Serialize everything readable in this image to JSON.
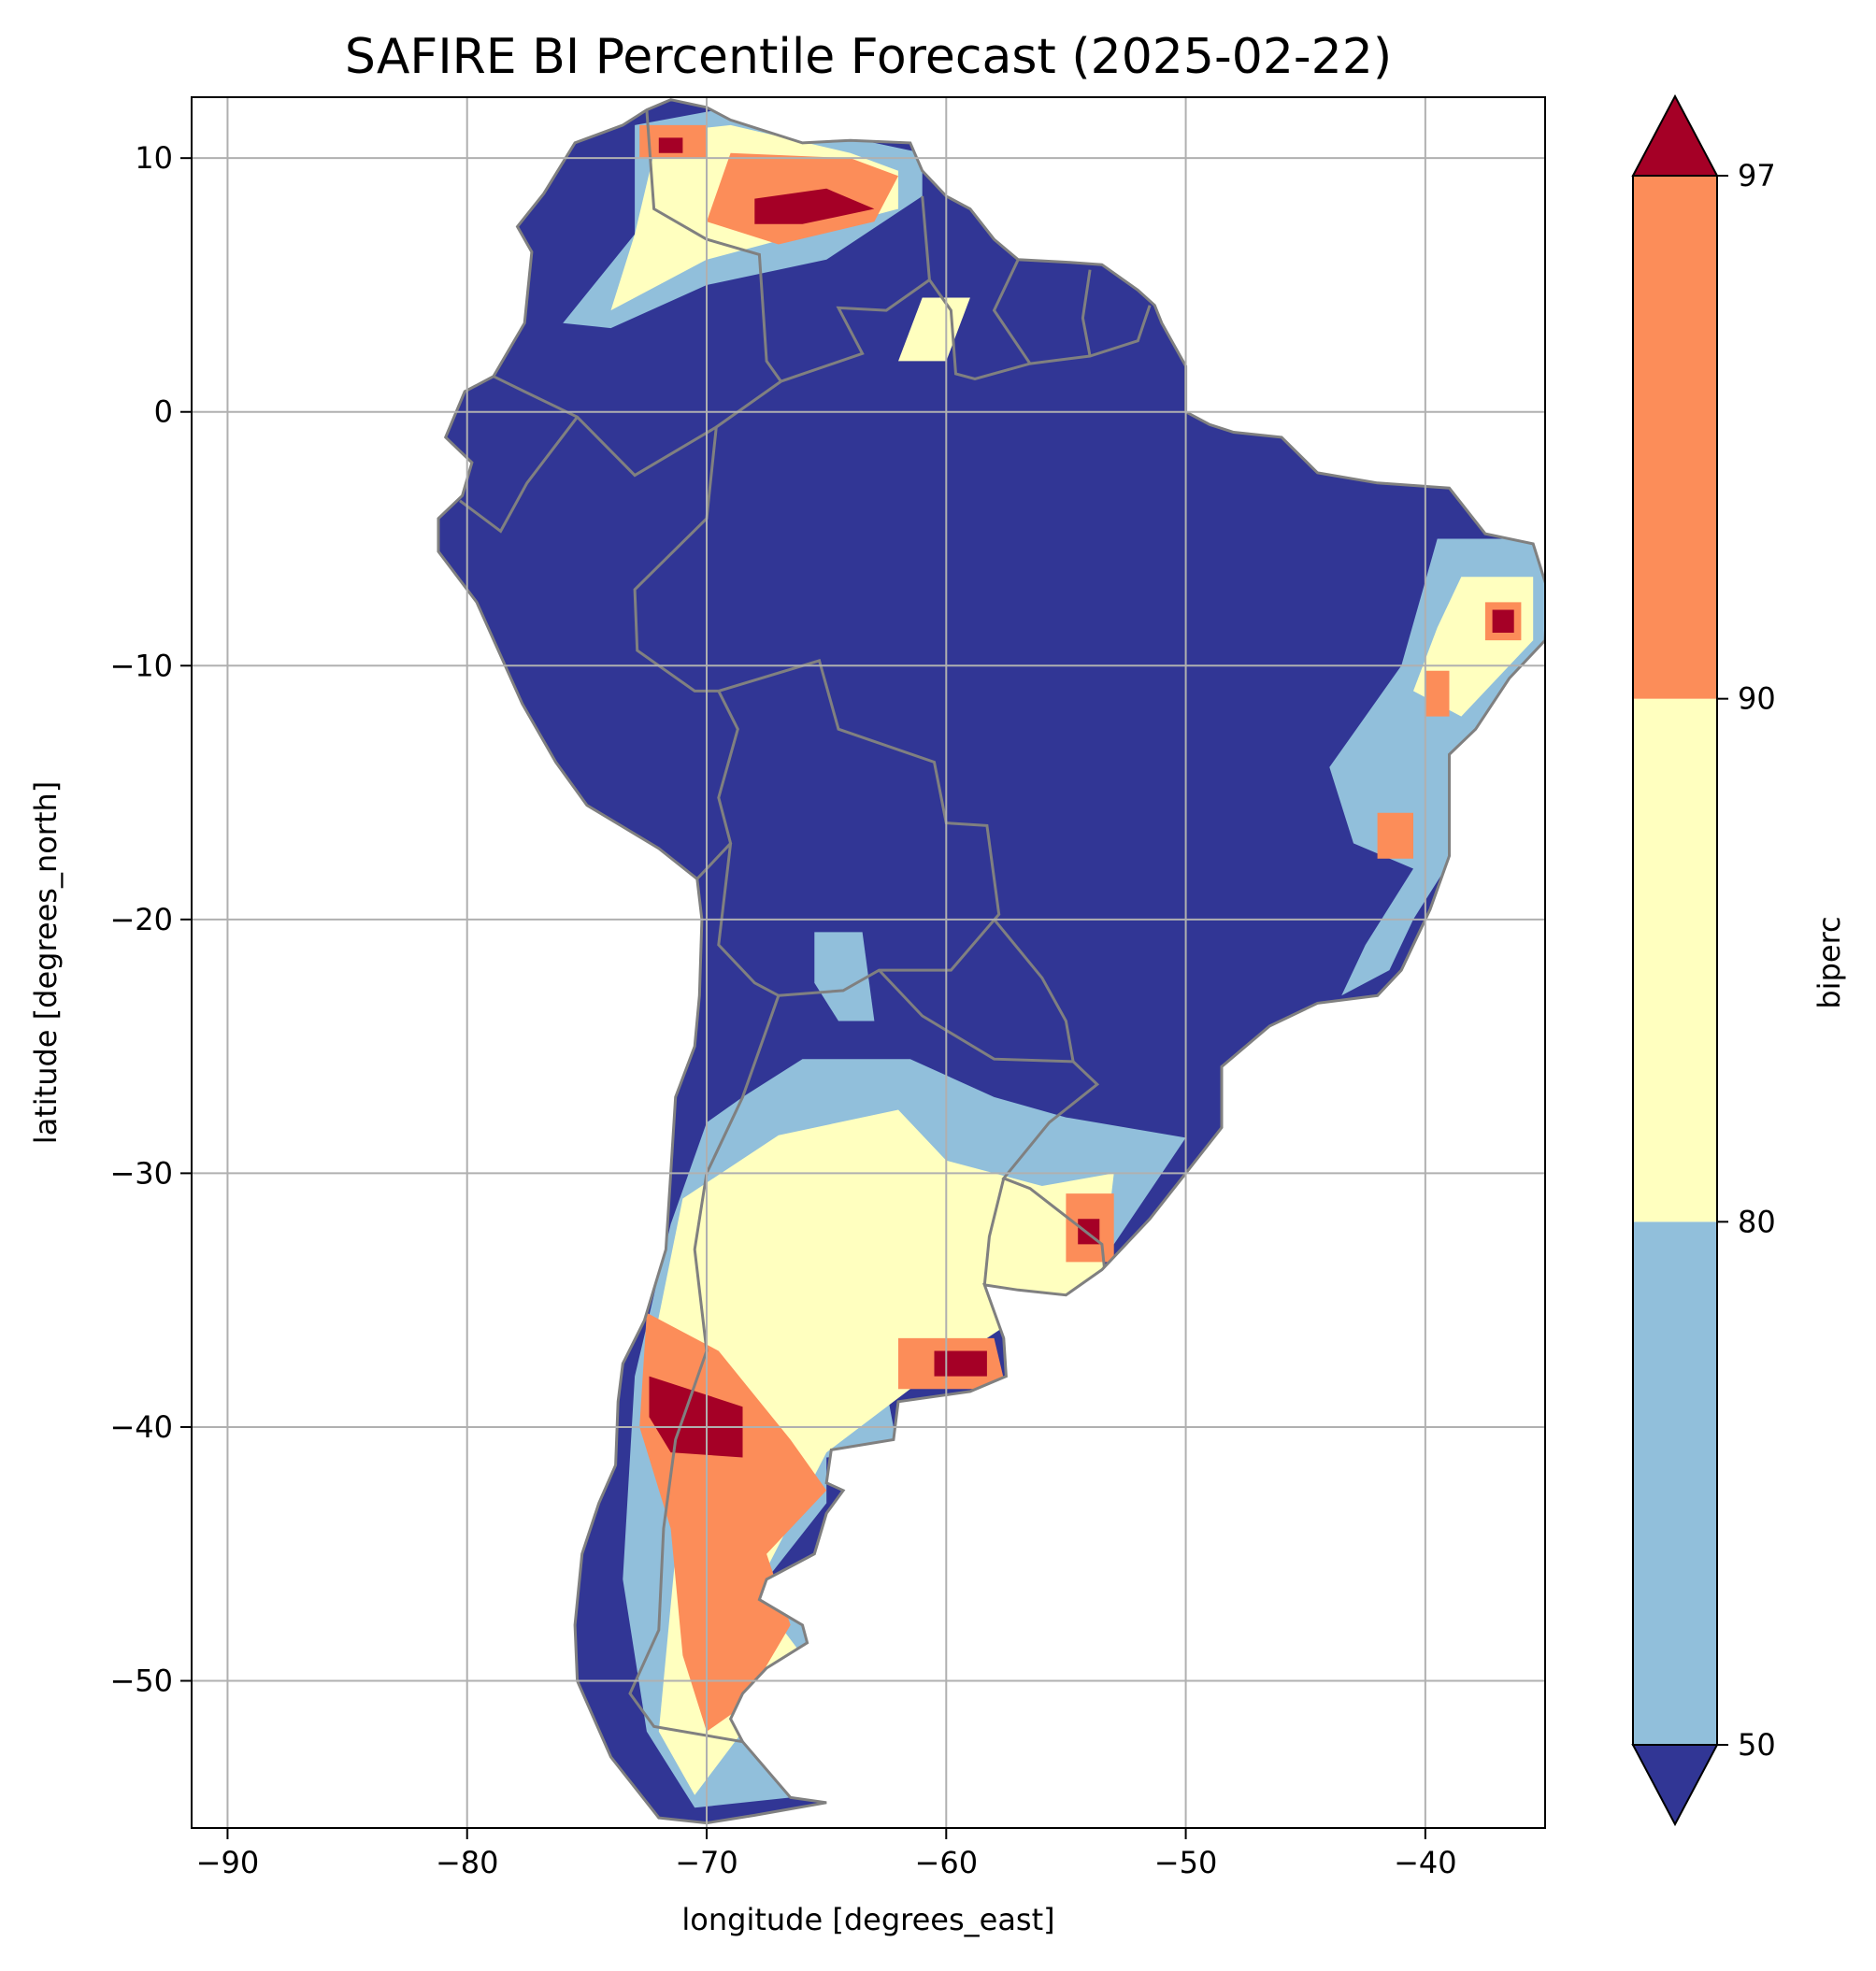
{
  "chart_data": {
    "type": "heatmap",
    "title": "SAFIRE BI Percentile Forecast (2025-02-22)",
    "xlabel": "longitude [degrees_east]",
    "ylabel": "latitude [degrees_north]",
    "xlim": [
      -91.5,
      -35
    ],
    "ylim": [
      -55.8,
      12.4
    ],
    "x_ticks": [
      -90,
      -80,
      -70,
      -60,
      -50,
      -40
    ],
    "y_ticks": [
      10,
      0,
      -10,
      -20,
      -30,
      -40,
      -50
    ],
    "x_tick_labels": [
      "−90",
      "−80",
      "−70",
      "−60",
      "−50",
      "−40"
    ],
    "y_tick_labels": [
      "10",
      "0",
      "−10",
      "−20",
      "−30",
      "−40",
      "−50"
    ],
    "grid": true,
    "colorbar": {
      "label": "biperc",
      "ticks": [
        50,
        80,
        90,
        97
      ],
      "tick_labels": [
        "50",
        "80",
        "90",
        "97"
      ],
      "extend": "both",
      "bins": [
        {
          "range": "<50",
          "color": "#313695"
        },
        {
          "range": "50-80",
          "color": "#91bfdb"
        },
        {
          "range": "80-90",
          "color": "#ffffbf"
        },
        {
          "range": "90-97",
          "color": "#fc8d59"
        },
        {
          "range": ">97",
          "color": "#a50026"
        }
      ]
    },
    "land_color": "#313695",
    "border_color": "#808080",
    "regions": [
      {
        "category": "50-80",
        "pts": [
          [
            -73,
            11.3
          ],
          [
            -69,
            12
          ],
          [
            -64,
            10.8
          ],
          [
            -61,
            10.2
          ],
          [
            -61,
            8.5
          ],
          [
            -65,
            6
          ],
          [
            -70,
            5
          ],
          [
            -74,
            3.3
          ],
          [
            -76,
            3.5
          ],
          [
            -73,
            7
          ],
          [
            -73,
            9
          ]
        ]
      },
      {
        "category": "80-90",
        "pts": [
          [
            -72,
            11
          ],
          [
            -69,
            11.3
          ],
          [
            -64,
            10.2
          ],
          [
            -62,
            9.5
          ],
          [
            -62,
            8
          ],
          [
            -66,
            7
          ],
          [
            -70,
            6
          ],
          [
            -74,
            4
          ],
          [
            -73,
            7
          ]
        ]
      },
      {
        "category": "90-97",
        "pts": [
          [
            -69,
            10.2
          ],
          [
            -64,
            10
          ],
          [
            -62,
            9.3
          ],
          [
            -63,
            7.5
          ],
          [
            -67,
            6.6
          ],
          [
            -70,
            7.5
          ]
        ]
      },
      {
        "category": ">97",
        "pts": [
          [
            -68,
            8.4
          ],
          [
            -65,
            8.8
          ],
          [
            -63,
            8
          ],
          [
            -66,
            7.4
          ],
          [
            -68,
            7.4
          ]
        ]
      },
      {
        "category": "90-97",
        "pts": [
          [
            -72.8,
            11.3
          ],
          [
            -70,
            11.3
          ],
          [
            -70,
            10
          ],
          [
            -72.8,
            10
          ]
        ]
      },
      {
        "category": ">97",
        "pts": [
          [
            -72,
            10.8
          ],
          [
            -71,
            10.8
          ],
          [
            -71,
            10.2
          ],
          [
            -72,
            10.2
          ]
        ]
      },
      {
        "category": "80-90",
        "pts": [
          [
            -61,
            4.5
          ],
          [
            -59,
            4.5
          ],
          [
            -60,
            2
          ],
          [
            -62,
            2
          ]
        ]
      },
      {
        "category": "50-80",
        "pts": [
          [
            -39.5,
            -5
          ],
          [
            -35,
            -5
          ],
          [
            -35,
            -10
          ],
          [
            -38.5,
            -17
          ],
          [
            -40.5,
            -20
          ],
          [
            -41.5,
            -22
          ],
          [
            -43.5,
            -23
          ],
          [
            -42.5,
            -21
          ],
          [
            -40.5,
            -18
          ],
          [
            -43,
            -17
          ],
          [
            -44,
            -14
          ],
          [
            -41,
            -10
          ]
        ]
      },
      {
        "category": "80-90",
        "pts": [
          [
            -38.5,
            -6.5
          ],
          [
            -35.5,
            -6.5
          ],
          [
            -35.5,
            -9
          ],
          [
            -38.5,
            -12
          ],
          [
            -40.5,
            -11
          ],
          [
            -39.5,
            -8.5
          ]
        ]
      },
      {
        "category": "90-97",
        "pts": [
          [
            -37.5,
            -7.5
          ],
          [
            -36,
            -7.5
          ],
          [
            -36,
            -9
          ],
          [
            -37.5,
            -9
          ]
        ]
      },
      {
        "category": ">97",
        "pts": [
          [
            -37.2,
            -7.8
          ],
          [
            -36.3,
            -7.8
          ],
          [
            -36.3,
            -8.7
          ],
          [
            -37.2,
            -8.7
          ]
        ]
      },
      {
        "category": "90-97",
        "pts": [
          [
            -40,
            -10.2
          ],
          [
            -39,
            -10.2
          ],
          [
            -39,
            -12
          ],
          [
            -40,
            -12
          ]
        ]
      },
      {
        "category": "90-97",
        "pts": [
          [
            -42,
            -15.8
          ],
          [
            -40.5,
            -15.8
          ],
          [
            -40.5,
            -17.6
          ],
          [
            -42,
            -17.6
          ]
        ]
      },
      {
        "category": "50-80",
        "pts": [
          [
            -65.5,
            -20.5
          ],
          [
            -63.5,
            -20.5
          ],
          [
            -63,
            -24
          ],
          [
            -64.5,
            -24
          ],
          [
            -65.5,
            -22.5
          ]
        ]
      },
      {
        "category": "50-80",
        "pts": [
          [
            -66,
            -25.5
          ],
          [
            -61.5,
            -25.5
          ],
          [
            -58,
            -27
          ],
          [
            -55,
            -27.8
          ],
          [
            -50,
            -28.6
          ],
          [
            -53.5,
            -33.5
          ],
          [
            -57.5,
            -34.4
          ],
          [
            -62.5,
            -38.5
          ],
          [
            -62,
            -41
          ],
          [
            -65,
            -41.2
          ],
          [
            -65,
            -43
          ],
          [
            -67.5,
            -46
          ],
          [
            -65.5,
            -48
          ],
          [
            -68.5,
            -52
          ],
          [
            -66.5,
            -54.6
          ],
          [
            -70.5,
            -55
          ],
          [
            -72.5,
            -52
          ],
          [
            -73.5,
            -46
          ],
          [
            -73,
            -38
          ],
          [
            -71.5,
            -32
          ],
          [
            -70,
            -28
          ],
          [
            -68.5,
            -27
          ]
        ]
      },
      {
        "category": "80-90",
        "pts": [
          [
            -67,
            -28.5
          ],
          [
            -62,
            -27.5
          ],
          [
            -60,
            -29.5
          ],
          [
            -56,
            -30.5
          ],
          [
            -53,
            -30
          ],
          [
            -53.5,
            -34
          ],
          [
            -57.5,
            -36
          ],
          [
            -61.5,
            -38.5
          ],
          [
            -65,
            -41
          ],
          [
            -68,
            -46.5
          ],
          [
            -66,
            -49
          ],
          [
            -68.5,
            -52
          ],
          [
            -70.5,
            -54.5
          ],
          [
            -72,
            -52
          ],
          [
            -71.2,
            -44
          ],
          [
            -72.5,
            -38
          ],
          [
            -71,
            -31
          ]
        ]
      },
      {
        "category": "90-97",
        "pts": [
          [
            -62,
            -36.5
          ],
          [
            -58,
            -36.5
          ],
          [
            -57.5,
            -38.5
          ],
          [
            -62,
            -38.5
          ]
        ]
      },
      {
        "category": ">97",
        "pts": [
          [
            -60.5,
            -37
          ],
          [
            -58.3,
            -37
          ],
          [
            -58.3,
            -38
          ],
          [
            -60.5,
            -38
          ]
        ]
      },
      {
        "category": "90-97",
        "pts": [
          [
            -72.5,
            -35.5
          ],
          [
            -69.5,
            -37
          ],
          [
            -66.5,
            -40.5
          ],
          [
            -65,
            -42.5
          ],
          [
            -67.5,
            -45
          ],
          [
            -66.5,
            -47.8
          ],
          [
            -68.5,
            -51
          ],
          [
            -70,
            -52
          ],
          [
            -71,
            -49
          ],
          [
            -71.5,
            -44
          ],
          [
            -72.8,
            -40
          ]
        ]
      },
      {
        "category": ">97",
        "pts": [
          [
            -72.4,
            -38
          ],
          [
            -68.5,
            -39.2
          ],
          [
            -68.5,
            -41.2
          ],
          [
            -71.5,
            -41
          ],
          [
            -72.4,
            -39.6
          ]
        ]
      },
      {
        "category": "90-97",
        "pts": [
          [
            -55,
            -30.8
          ],
          [
            -53,
            -30.8
          ],
          [
            -53,
            -33.5
          ],
          [
            -55,
            -33.5
          ]
        ]
      },
      {
        "category": ">97",
        "pts": [
          [
            -54.5,
            -31.8
          ],
          [
            -53.6,
            -31.8
          ],
          [
            -53.6,
            -32.8
          ],
          [
            -54.5,
            -32.8
          ]
        ]
      }
    ]
  }
}
